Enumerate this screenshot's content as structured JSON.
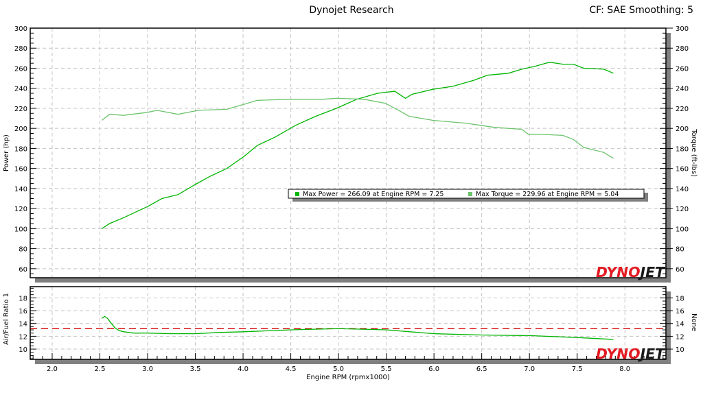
{
  "header": {
    "title": "Dynojet Research",
    "info": "CF: SAE Smoothing: 5"
  },
  "logo_text": {
    "red": "DYNO",
    "black": "JET"
  },
  "colors": {
    "power": "#00b400",
    "torque": "#6cc46c",
    "afr": "#00b400",
    "afr_target": "#d40000",
    "shadow": "#808080",
    "grid": "#c4c4c4"
  },
  "chart_data": [
    {
      "type": "line",
      "xlabel": "",
      "ylabel": "Power (hp)",
      "y2label": "Torque (ft-lbs)",
      "xlim": [
        1.77,
        8.43
      ],
      "ylim": [
        51,
        300
      ],
      "yticks": [
        60,
        80,
        100,
        120,
        140,
        160,
        180,
        200,
        220,
        240,
        260,
        280,
        300
      ],
      "grid": true,
      "legend_position": "center-right",
      "legend": [
        {
          "label": "Max Power = 266.09 at Engine RPM = 7.25",
          "color": "#00b400"
        },
        {
          "label": "Max Torque = 229.96 at Engine RPM = 5.04",
          "color": "#6cc46c"
        }
      ],
      "series": [
        {
          "key": "power",
          "axis": "left",
          "x": [
            2.52,
            2.6,
            2.75,
            3.0,
            3.15,
            3.32,
            3.5,
            3.65,
            3.83,
            4.01,
            4.15,
            4.33,
            4.55,
            4.76,
            4.98,
            5.19,
            5.41,
            5.59,
            5.7,
            5.77,
            5.99,
            6.2,
            6.42,
            6.56,
            6.78,
            6.92,
            7.06,
            7.21,
            7.35,
            7.46,
            7.57,
            7.78,
            7.88
          ],
          "y": [
            100,
            105,
            111,
            122,
            130,
            134,
            144,
            152,
            160,
            172,
            183,
            191,
            203,
            212,
            220,
            229,
            235,
            237,
            230,
            234,
            239,
            242,
            248,
            253,
            255,
            259,
            262,
            266,
            264,
            264,
            260,
            259,
            255
          ]
        },
        {
          "key": "torque",
          "axis": "right",
          "x": [
            2.52,
            2.6,
            2.75,
            3.0,
            3.1,
            3.32,
            3.53,
            3.83,
            4.01,
            4.15,
            4.47,
            4.83,
            4.98,
            5.27,
            5.49,
            5.63,
            5.74,
            5.99,
            6.35,
            6.49,
            6.63,
            6.92,
            6.99,
            7.14,
            7.35,
            7.46,
            7.57,
            7.78,
            7.88
          ],
          "y": [
            208,
            214,
            213,
            216,
            218,
            214,
            218,
            219,
            224,
            228,
            229,
            229,
            230,
            229,
            225,
            218,
            212,
            208,
            205,
            203,
            201,
            199,
            194,
            194,
            193,
            189,
            181,
            176,
            170
          ]
        }
      ]
    },
    {
      "type": "line",
      "xlabel": "Engine RPM (rpmx1000)",
      "ylabel": "Air/Fuel Ratio 1",
      "y2label": "None",
      "xlim": [
        1.77,
        8.43
      ],
      "ylim": [
        8.4,
        19.75
      ],
      "xticks": [
        2.0,
        2.5,
        3.0,
        3.5,
        4.0,
        4.5,
        5.0,
        5.5,
        6.0,
        6.5,
        7.0,
        7.5,
        8.0
      ],
      "yticks": [
        10,
        12,
        14,
        16,
        18
      ],
      "grid": true,
      "reference_line": 13.2,
      "series": [
        {
          "key": "afr",
          "x": [
            2.52,
            2.55,
            2.58,
            2.62,
            2.66,
            2.7,
            2.75,
            2.85,
            3.0,
            3.25,
            3.5,
            3.75,
            4.0,
            4.5,
            5.0,
            5.5,
            5.75,
            6.0,
            6.5,
            7.0,
            7.5,
            7.88
          ],
          "y": [
            14.8,
            15.1,
            14.8,
            14.0,
            13.3,
            12.9,
            12.7,
            12.5,
            12.5,
            12.4,
            12.4,
            12.6,
            12.7,
            13.0,
            13.2,
            13.0,
            12.7,
            12.4,
            12.2,
            12.1,
            11.8,
            11.5
          ]
        }
      ]
    }
  ]
}
